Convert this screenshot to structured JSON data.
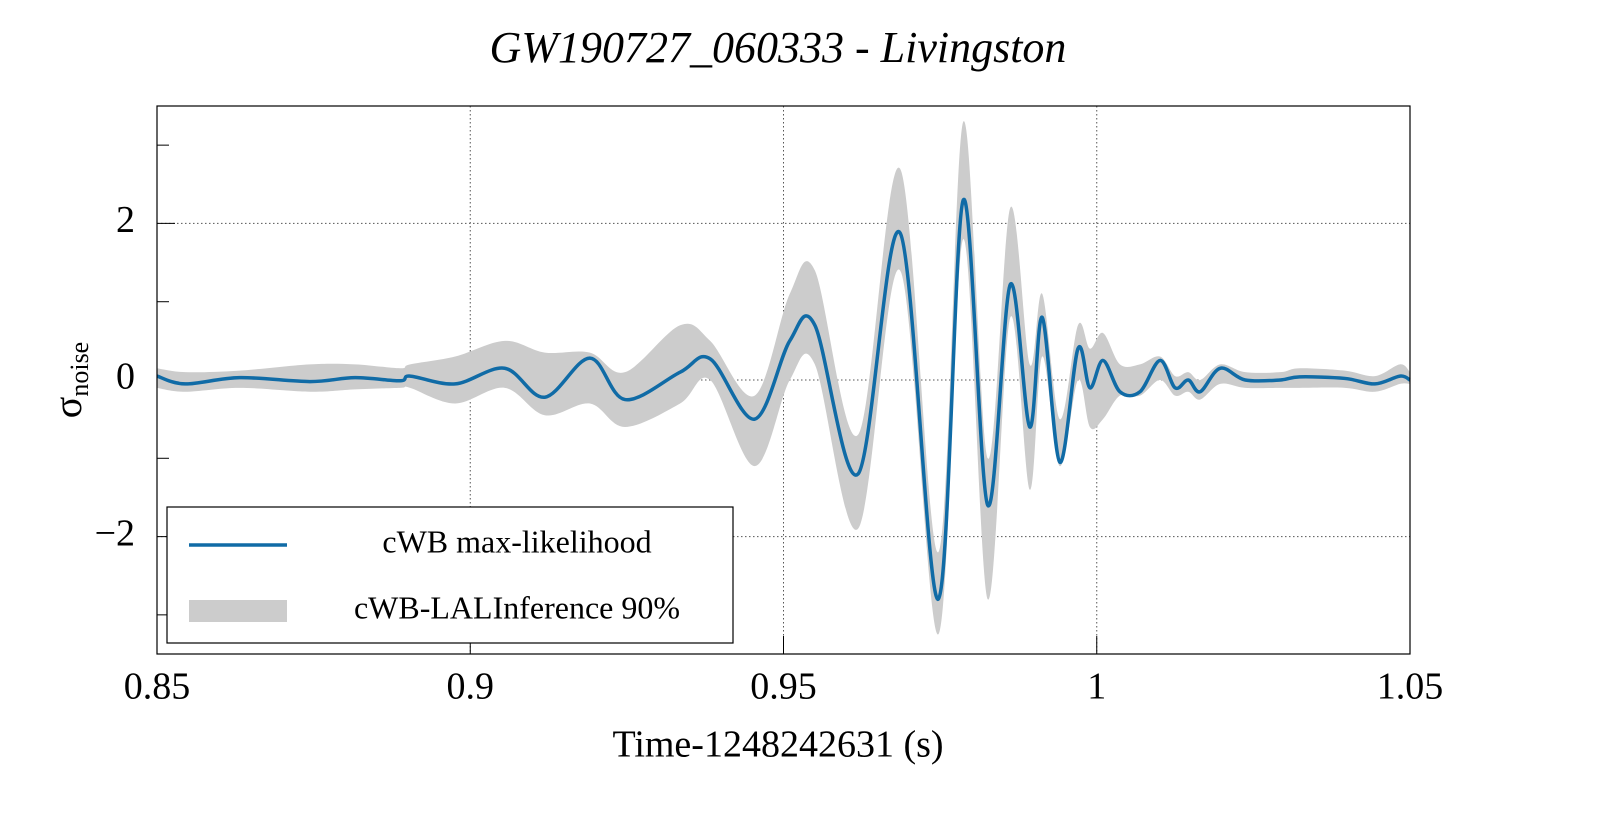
{
  "chart_data": {
    "type": "line",
    "title": "GW190727_060333 - Livingston",
    "xlabel": "Time-1248242631 (s)",
    "ylabel": "σ",
    "ylabel_subscript": "noise",
    "xlim": [
      0.85,
      1.05
    ],
    "xticks": [
      0.85,
      0.9,
      0.95,
      1,
      1.05
    ],
    "ylim": [
      -3.5,
      3.5
    ],
    "yticks": [
      {
        "value": -2,
        "label": "−2"
      },
      0,
      2
    ],
    "yminor_ticks": [
      -3,
      -1,
      1,
      3
    ],
    "grid": true,
    "legend": "lower left",
    "x": [
      0.85,
      0.8545,
      0.8632,
      0.8744,
      0.8816,
      0.8888,
      0.8904,
      0.8976,
      0.9055,
      0.9119,
      0.9191,
      0.9247,
      0.9335,
      0.9383,
      0.9454,
      0.951,
      0.955,
      0.9619,
      0.9686,
      0.9747,
      0.9787,
      0.9826,
      0.9862,
      0.9893,
      0.9913,
      0.9941,
      0.997,
      0.9989,
      1.001,
      1.0037,
      1.0069,
      1.0101,
      1.0125,
      1.0146,
      1.0165,
      1.0197,
      1.0237,
      1.0293,
      1.0324,
      1.0396,
      1.0444,
      1.0484,
      1.05
    ],
    "series": [
      {
        "name": "cWB max-likelihood",
        "type": "line",
        "color": "#106ba6",
        "values": [
          0.05,
          -0.05,
          0.03,
          -0.02,
          0.03,
          -0.01,
          0.05,
          -0.05,
          0.15,
          -0.22,
          0.28,
          -0.25,
          0.1,
          0.27,
          -0.5,
          0.5,
          0.7,
          -1.2,
          1.88,
          -2.8,
          2.3,
          -1.6,
          1.22,
          -0.6,
          0.8,
          -1.05,
          0.4,
          -0.1,
          0.25,
          -0.15,
          -0.15,
          0.25,
          -0.1,
          0,
          -0.15,
          0.15,
          0,
          0,
          0.04,
          0.02,
          -0.05,
          0.05,
          0
        ]
      },
      {
        "name": "cWB-LALInference 90%",
        "type": "band",
        "color": "#cccccc",
        "lower": [
          -0.1,
          -0.15,
          -0.1,
          -0.15,
          -0.12,
          -0.1,
          -0.1,
          -0.3,
          -0.1,
          -0.45,
          -0.3,
          -0.6,
          -0.3,
          0,
          -1.1,
          0,
          0.2,
          -1.9,
          1.4,
          -3.25,
          1.8,
          -2.8,
          0.8,
          -1.4,
          0.3,
          -1.1,
          0,
          -0.6,
          -0.5,
          -0.2,
          -0.2,
          0,
          -0.2,
          -0.15,
          -0.25,
          -0.05,
          -0.1,
          -0.1,
          -0.1,
          -0.1,
          -0.15,
          -0.05,
          -0.05
        ],
        "upper": [
          0.15,
          0.1,
          0.12,
          0.2,
          0.2,
          0.15,
          0.2,
          0.3,
          0.5,
          0.35,
          0.35,
          0.1,
          0.7,
          0.5,
          -0.2,
          1.1,
          1.4,
          -0.7,
          2.7,
          -2.2,
          3.3,
          -1.0,
          2.2,
          0.2,
          1.1,
          -0.5,
          0.7,
          0.4,
          0.6,
          0.2,
          0.2,
          0.3,
          0.05,
          0.1,
          0,
          0.2,
          0.1,
          0.1,
          0.15,
          0.12,
          0.05,
          0.2,
          0.1
        ]
      }
    ]
  }
}
